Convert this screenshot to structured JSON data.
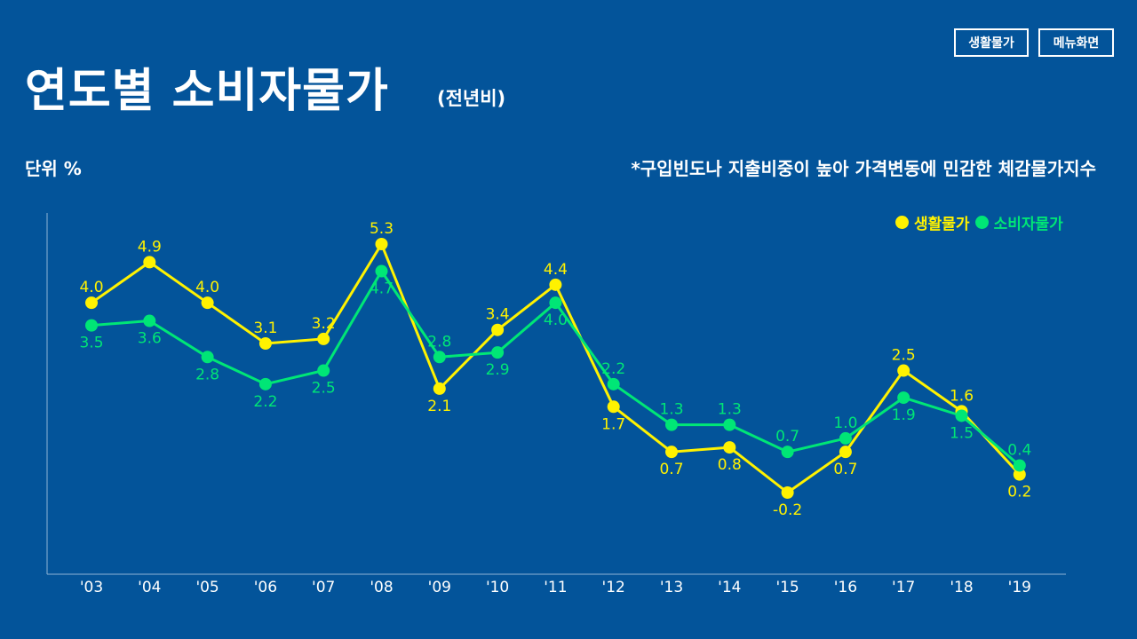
{
  "header": {
    "title": "연도별 소비자물가",
    "subtitle": "(전년비)",
    "buttons": {
      "living_prices": "생활물가",
      "main_menu": "메뉴화면"
    }
  },
  "unit_label": "단위 %",
  "note": "*구입빈도나 지출비중이 높아 가격변동에 민감한 체감물가지수",
  "legend": {
    "living": "생활물가",
    "consumer": "소비자물가"
  },
  "colors": {
    "background": "#03549a",
    "living": "#fff200",
    "consumer": "#00e676",
    "text": "#ffffff"
  },
  "chart_data": {
    "type": "line",
    "title": "연도별 소비자물가 (전년비)",
    "ylabel": "단위 %",
    "xlabel": "",
    "categories": [
      "'03",
      "'04",
      "'05",
      "'06",
      "'07",
      "'08",
      "'09",
      "'10",
      "'11",
      "'12",
      "'13",
      "'14",
      "'15",
      "'16",
      "'17",
      "'18",
      "'19"
    ],
    "ylim": [
      -1.2,
      5.3
    ],
    "series": [
      {
        "name": "생활물가",
        "values": [
          4.0,
          4.9,
          4.0,
          3.1,
          3.2,
          5.3,
          2.1,
          3.4,
          4.4,
          1.7,
          0.7,
          0.8,
          -0.2,
          0.7,
          2.5,
          1.6,
          0.2
        ]
      },
      {
        "name": "소비자물가",
        "values": [
          3.5,
          3.6,
          2.8,
          2.2,
          2.5,
          4.7,
          2.8,
          2.9,
          4.0,
          2.2,
          1.3,
          1.3,
          0.7,
          1.0,
          1.9,
          1.5,
          0.4
        ]
      }
    ]
  }
}
